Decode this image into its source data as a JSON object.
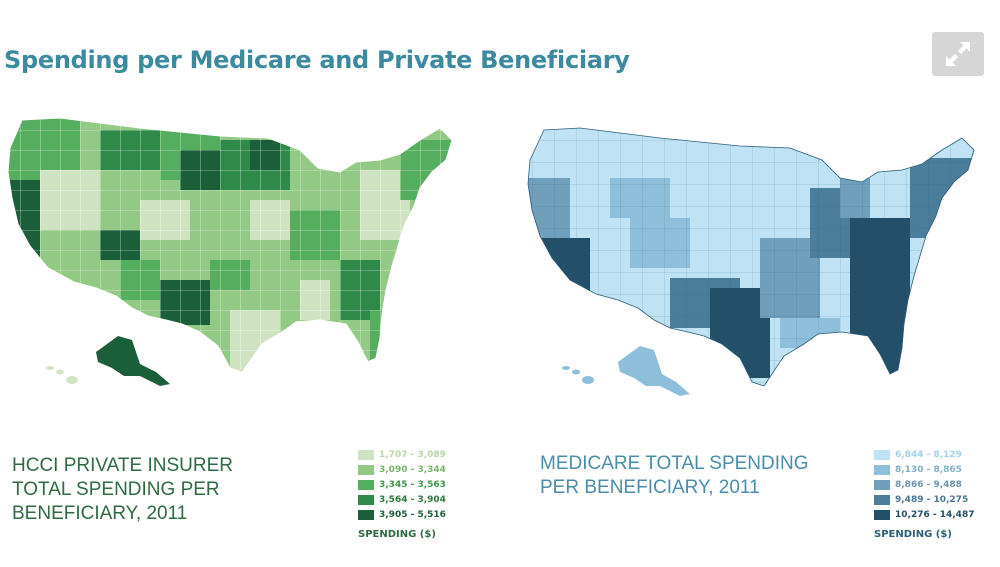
{
  "page": {
    "title": "Spending per Medicare and Private Beneficiary",
    "expand_icon": "expand-arrows-icon"
  },
  "maps": [
    {
      "caption_lines": [
        "HCCI PRIVATE INSURER",
        "TOTAL SPENDING PER",
        "BENEFICIARY, 2011"
      ],
      "legend": {
        "title": "SPENDING ($)",
        "items": [
          {
            "label": "1,707 - 3,089",
            "color": "#cfe3c2",
            "text_color": "#b9d6a7"
          },
          {
            "label": "3,090 - 3,344",
            "color": "#92c985",
            "text_color": "#78b56a"
          },
          {
            "label": "3,345 - 3,563",
            "color": "#55ad5e",
            "text_color": "#3f9a4a"
          },
          {
            "label": "3,564 - 3,904",
            "color": "#2f8a4a",
            "text_color": "#2a7a40"
          },
          {
            "label": "3,905 - 5,516",
            "color": "#1b5e3a",
            "text_color": "#1b5e3a"
          }
        ]
      }
    },
    {
      "caption_lines": [
        "MEDICARE TOTAL SPENDING",
        "PER BENEFICIARY, 2011"
      ],
      "legend": {
        "title": "SPENDING ($)",
        "items": [
          {
            "label": "6,844 - 8,129",
            "color": "#bfe3f5",
            "text_color": "#a3d3ec"
          },
          {
            "label": "8,130 - 8,865",
            "color": "#8ebfda",
            "text_color": "#7fb1cc"
          },
          {
            "label": "8,866 - 9,488",
            "color": "#6f9fbb",
            "text_color": "#6a96b0"
          },
          {
            "label": "9,489 - 10,275",
            "color": "#4a7e9b",
            "text_color": "#457894"
          },
          {
            "label": "10,276 - 14,487",
            "color": "#244f68",
            "text_color": "#244f68"
          }
        ]
      }
    }
  ]
}
